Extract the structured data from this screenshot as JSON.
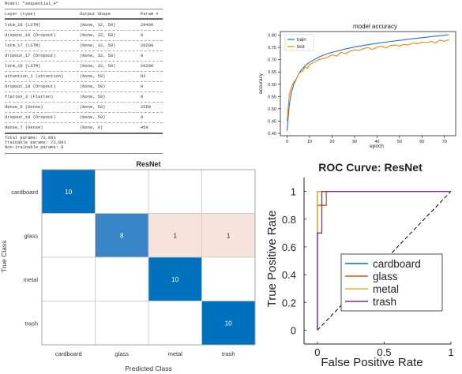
{
  "summary": {
    "model_line": "Model: \"sequential_4\"",
    "headers": [
      "Layer (type)",
      "Output Shape",
      "Param #"
    ],
    "rows": [
      [
        "lstm_16 (LSTM)",
        "(None, 32, 50)",
        "29400"
      ],
      [
        "dropout_16 (Dropout)",
        "(None, 32, 50)",
        "0"
      ],
      [
        "lstm_17 (LSTM)",
        "(None, 32, 50)",
        "20200"
      ],
      [
        "dropout_17 (Dropout)",
        "(None, 32, 50)",
        "0"
      ],
      [
        "lstm_18 (LSTM)",
        "(None, 32, 50)",
        "20200"
      ],
      [
        "attention_1 (attention)",
        "(None, 50)",
        "82"
      ],
      [
        "dropout_18 (Dropout)",
        "(None, 50)",
        "0"
      ],
      [
        "flatten_3 (Flatten)",
        "(None, 50)",
        "0"
      ],
      [
        "dense_6 (Dense)",
        "(None, 50)",
        "2550"
      ],
      [
        "dropout_19 (Dropout)",
        "(None, 50)",
        "0"
      ],
      [
        "dense_7 (Dense)",
        "(None, 9)",
        "459"
      ]
    ],
    "totals": [
      "Total params: 72,891",
      "Trainable params: 72,891",
      "Non-trainable params: 0"
    ]
  },
  "chart_data": [
    {
      "type": "line",
      "title": "model accuracy",
      "xlabel": "epoch",
      "ylabel": "accuracy",
      "xlim": [
        -3,
        75
      ],
      "ylim": [
        0.39,
        0.815
      ],
      "xticks": [
        0,
        10,
        20,
        30,
        40,
        50,
        60,
        70
      ],
      "yticks": [
        0.4,
        0.45,
        0.5,
        0.55,
        0.6,
        0.65,
        0.7,
        0.75,
        0.8
      ],
      "ytick_labels": [
        "0.40",
        "0.45",
        "0.50",
        "0.55",
        "0.60",
        "0.65",
        "0.70",
        "0.75",
        "0.80"
      ],
      "grid": false,
      "legend": "top-left",
      "series": [
        {
          "name": "train",
          "color": "#1f77b4",
          "x": [
            0,
            1,
            2,
            3,
            4,
            5,
            6,
            8,
            10,
            12,
            14,
            16,
            18,
            20,
            25,
            30,
            35,
            40,
            45,
            50,
            55,
            60,
            65,
            70,
            72
          ],
          "y": [
            0.41,
            0.52,
            0.57,
            0.6,
            0.62,
            0.64,
            0.655,
            0.675,
            0.69,
            0.7,
            0.71,
            0.718,
            0.725,
            0.73,
            0.742,
            0.752,
            0.76,
            0.767,
            0.773,
            0.779,
            0.785,
            0.79,
            0.795,
            0.8,
            0.802
          ]
        },
        {
          "name": "test",
          "color": "#ff7f0e",
          "x": [
            0,
            1,
            2,
            3,
            4,
            5,
            6,
            7,
            8,
            9,
            10,
            12,
            14,
            16,
            18,
            20,
            22,
            24,
            26,
            28,
            30,
            32,
            34,
            36,
            38,
            40,
            42,
            44,
            46,
            48,
            50,
            52,
            54,
            56,
            58,
            60,
            62,
            64,
            66,
            68,
            70,
            72
          ],
          "y": [
            0.45,
            0.56,
            0.59,
            0.61,
            0.62,
            0.64,
            0.65,
            0.655,
            0.67,
            0.665,
            0.68,
            0.69,
            0.7,
            0.705,
            0.71,
            0.72,
            0.715,
            0.73,
            0.725,
            0.735,
            0.74,
            0.738,
            0.745,
            0.75,
            0.742,
            0.752,
            0.755,
            0.748,
            0.758,
            0.76,
            0.755,
            0.763,
            0.76,
            0.768,
            0.765,
            0.772,
            0.77,
            0.775,
            0.768,
            0.78,
            0.775,
            0.782
          ]
        }
      ]
    },
    {
      "type": "heatmap",
      "title": "ResNet",
      "xlabel": "Predicted Class",
      "ylabel": "True Class",
      "x_categories": [
        "cardboard",
        "glass",
        "metal",
        "trash"
      ],
      "y_categories": [
        "cardboard",
        "glass",
        "metal",
        "trash"
      ],
      "values": [
        [
          10,
          0,
          0,
          0
        ],
        [
          0,
          8,
          1,
          1
        ],
        [
          0,
          0,
          10,
          0
        ],
        [
          0,
          0,
          0,
          10
        ]
      ],
      "colors": {
        "diagonal": "#0072bd",
        "off_diagonal_error": "#f5e3dc",
        "empty": "#ffffff"
      }
    },
    {
      "type": "line",
      "title": "ROC Curve: ResNet",
      "xlabel": "False Positive Rate",
      "ylabel": "True Positive Rate",
      "xlim": [
        -0.1,
        1
      ],
      "ylim": [
        -0.1,
        1.1
      ],
      "xticks": [
        0,
        0.5,
        1
      ],
      "xtick_labels": [
        "0",
        "0.5",
        "1"
      ],
      "yticks": [
        0,
        0.2,
        0.4,
        0.6,
        0.8,
        1
      ],
      "ytick_labels": [
        "0",
        "0.2",
        "0.4",
        "0.6",
        "0.8",
        "1"
      ],
      "legend": "bottom-right",
      "series": [
        {
          "name": "cardboard",
          "color": "#0072bd",
          "x": [
            0,
            0,
            1
          ],
          "y": [
            0,
            1,
            1
          ]
        },
        {
          "name": "glass",
          "color": "#d95319",
          "x": [
            0,
            0,
            0.033,
            0.033,
            0.067,
            0.067,
            1
          ],
          "y": [
            0,
            0.9,
            0.9,
            0.9,
            0.9,
            1,
            1
          ]
        },
        {
          "name": "metal",
          "color": "#edb120",
          "x": [
            0,
            0,
            1
          ],
          "y": [
            0,
            1,
            1
          ]
        },
        {
          "name": "trash",
          "color": "#7e2f8e",
          "x": [
            0,
            0,
            0.033,
            0.033,
            1
          ],
          "y": [
            0,
            0.7,
            0.7,
            1,
            1
          ]
        }
      ],
      "reference_line": {
        "x": [
          0,
          1
        ],
        "y": [
          0,
          1
        ],
        "style": "dashed",
        "color": "#000000"
      }
    }
  ]
}
